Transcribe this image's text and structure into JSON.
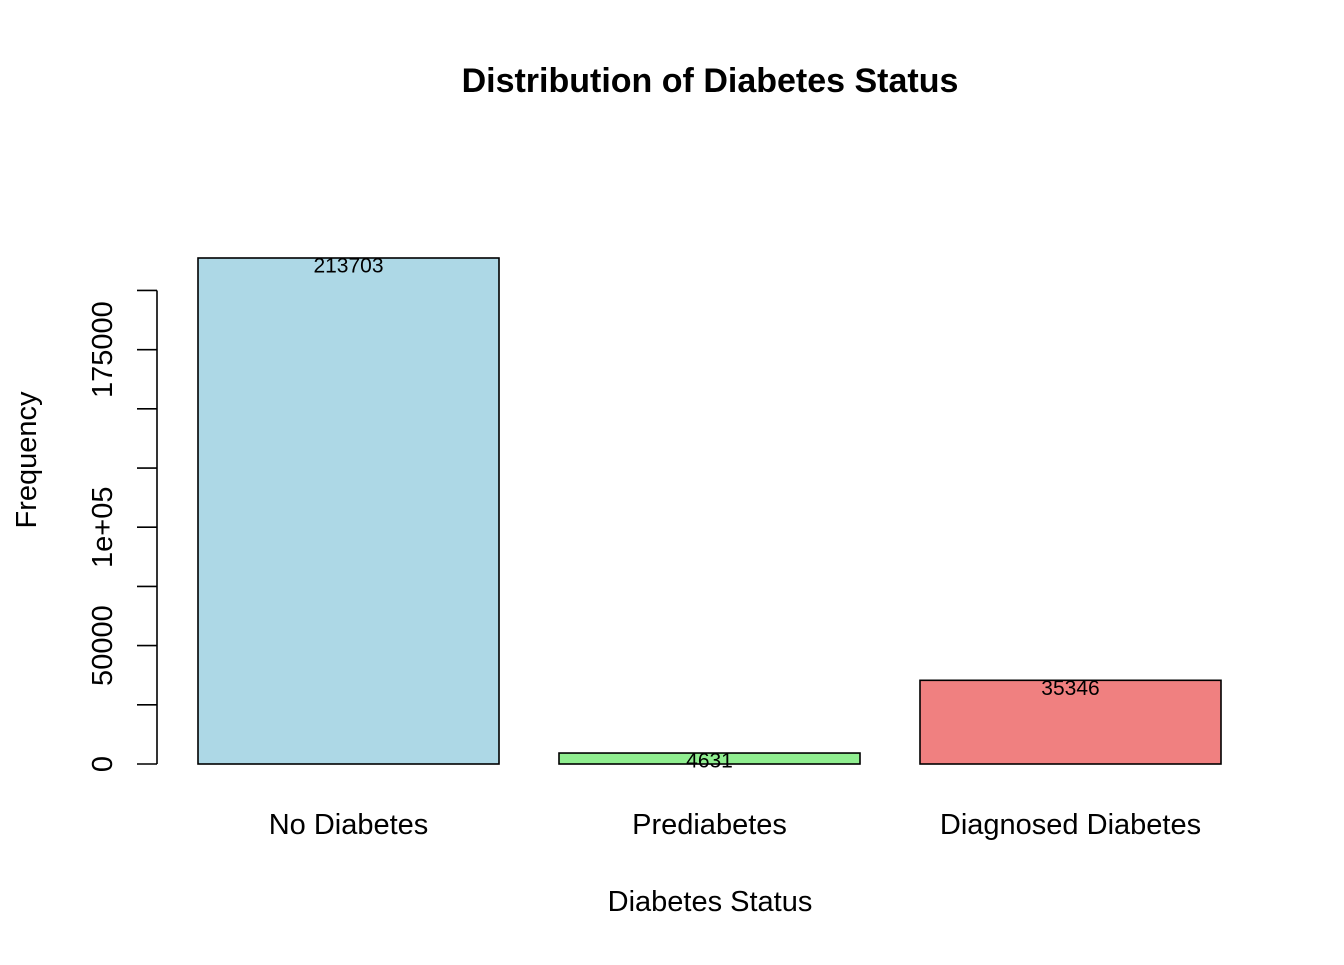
{
  "chart_data": {
    "type": "bar",
    "title": "Distribution of Diabetes Status",
    "xlabel": "Diabetes Status",
    "ylabel": "Frequency",
    "categories": [
      "No Diabetes",
      "Prediabetes",
      "Diagnosed Diabetes"
    ],
    "values": [
      213703,
      4631,
      35346
    ],
    "value_labels": [
      "213703",
      "4631",
      "35346"
    ],
    "colors": [
      "#ADD8E6",
      "#90EE90",
      "#F08080"
    ],
    "yticks": [
      0,
      25000,
      50000,
      75000,
      100000,
      125000,
      150000,
      175000,
      200000
    ],
    "ytick_labels": [
      "0",
      "",
      "50000",
      "",
      "1e+05",
      "",
      "",
      "175000",
      ""
    ],
    "ylim": [
      0,
      213703
    ],
    "grid": false,
    "legend": "none"
  }
}
